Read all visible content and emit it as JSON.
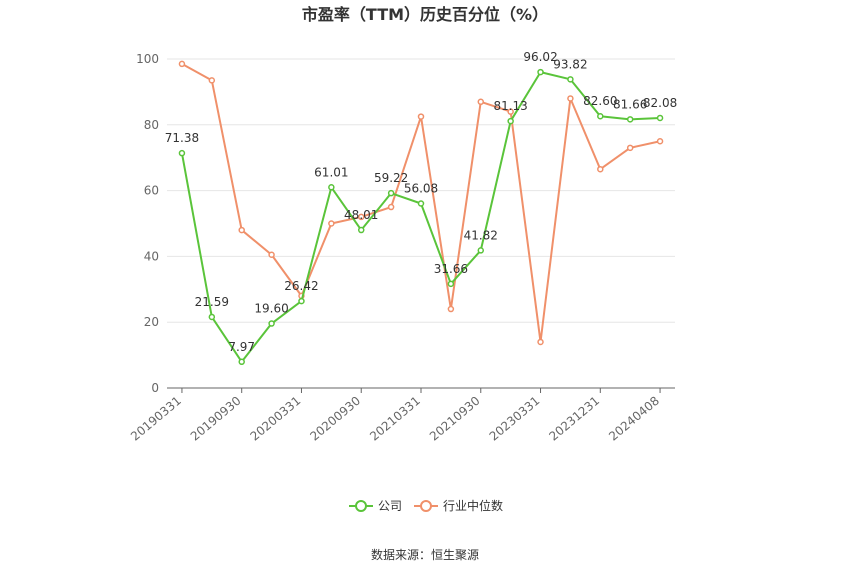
{
  "chart_data": {
    "type": "line",
    "title": "市盈率（TTM）历史百分位（%）",
    "source": "数据来源：恒生聚源",
    "ylim": [
      0,
      100
    ],
    "yticks": [
      0,
      20,
      40,
      60,
      80,
      100
    ],
    "x": [
      "",
      "",
      "",
      "",
      "",
      "",
      "",
      "",
      "",
      "",
      "",
      "",
      "",
      "",
      "",
      "",
      ""
    ],
    "xtick_labels": [
      {
        "index": 0,
        "label": "20190331"
      },
      {
        "index": 2,
        "label": "20190930"
      },
      {
        "index": 4,
        "label": "20200331"
      },
      {
        "index": 6,
        "label": "20200930"
      },
      {
        "index": 8,
        "label": "20210331"
      },
      {
        "index": 10,
        "label": "20210930"
      },
      {
        "index": 12,
        "label": "20230331"
      },
      {
        "index": 14,
        "label": "20231231"
      },
      {
        "index": 16,
        "label": "20240408"
      }
    ],
    "series": [
      {
        "name": "公司",
        "color": "#5ac43a",
        "values": [
          71.38,
          21.59,
          7.97,
          19.6,
          26.42,
          61.01,
          48.01,
          59.22,
          56.08,
          31.66,
          41.82,
          81.13,
          96.02,
          93.82,
          82.6,
          81.66,
          82.08
        ],
        "labels": [
          "71.38",
          "21.59",
          "7.97",
          "19.60",
          "26.42",
          "61.01",
          "48.01",
          "59.22",
          "56.08",
          "31.66",
          "41.82",
          "81.13",
          "96.02",
          "93.82",
          "82.60",
          "81.66",
          "82.08"
        ]
      },
      {
        "name": "行业中位数",
        "color": "#f0906a",
        "values": [
          98.5,
          93.5,
          48.0,
          40.5,
          28.0,
          50.0,
          52.0,
          55.0,
          82.5,
          24.0,
          87.0,
          84.0,
          14.0,
          88.0,
          66.5,
          73.0,
          75.0
        ]
      }
    ],
    "grid": true,
    "legend": "bottom-center"
  }
}
